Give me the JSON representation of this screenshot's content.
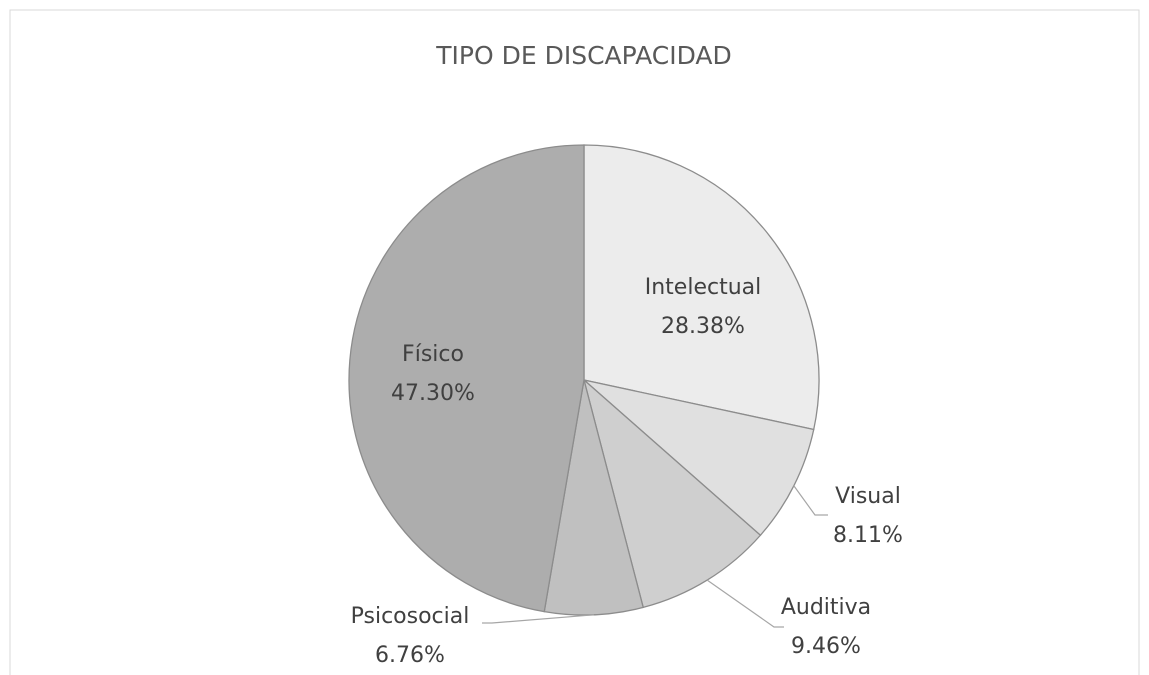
{
  "chart_data": {
    "type": "pie",
    "title": "TIPO DE DISCAPACIDAD",
    "categories": [
      "Intelectual",
      "Visual",
      "Auditiva",
      "Psicosocial",
      "Físico"
    ],
    "values": [
      28.38,
      8.11,
      9.46,
      6.76,
      47.3
    ],
    "value_labels": [
      "28.38%",
      "8.11%",
      "9.46%",
      "6.76%",
      "47.30%"
    ],
    "colors": [
      "#ececec",
      "#e0e0e0",
      "#cfcfcf",
      "#c0c0c0",
      "#adadad"
    ]
  }
}
